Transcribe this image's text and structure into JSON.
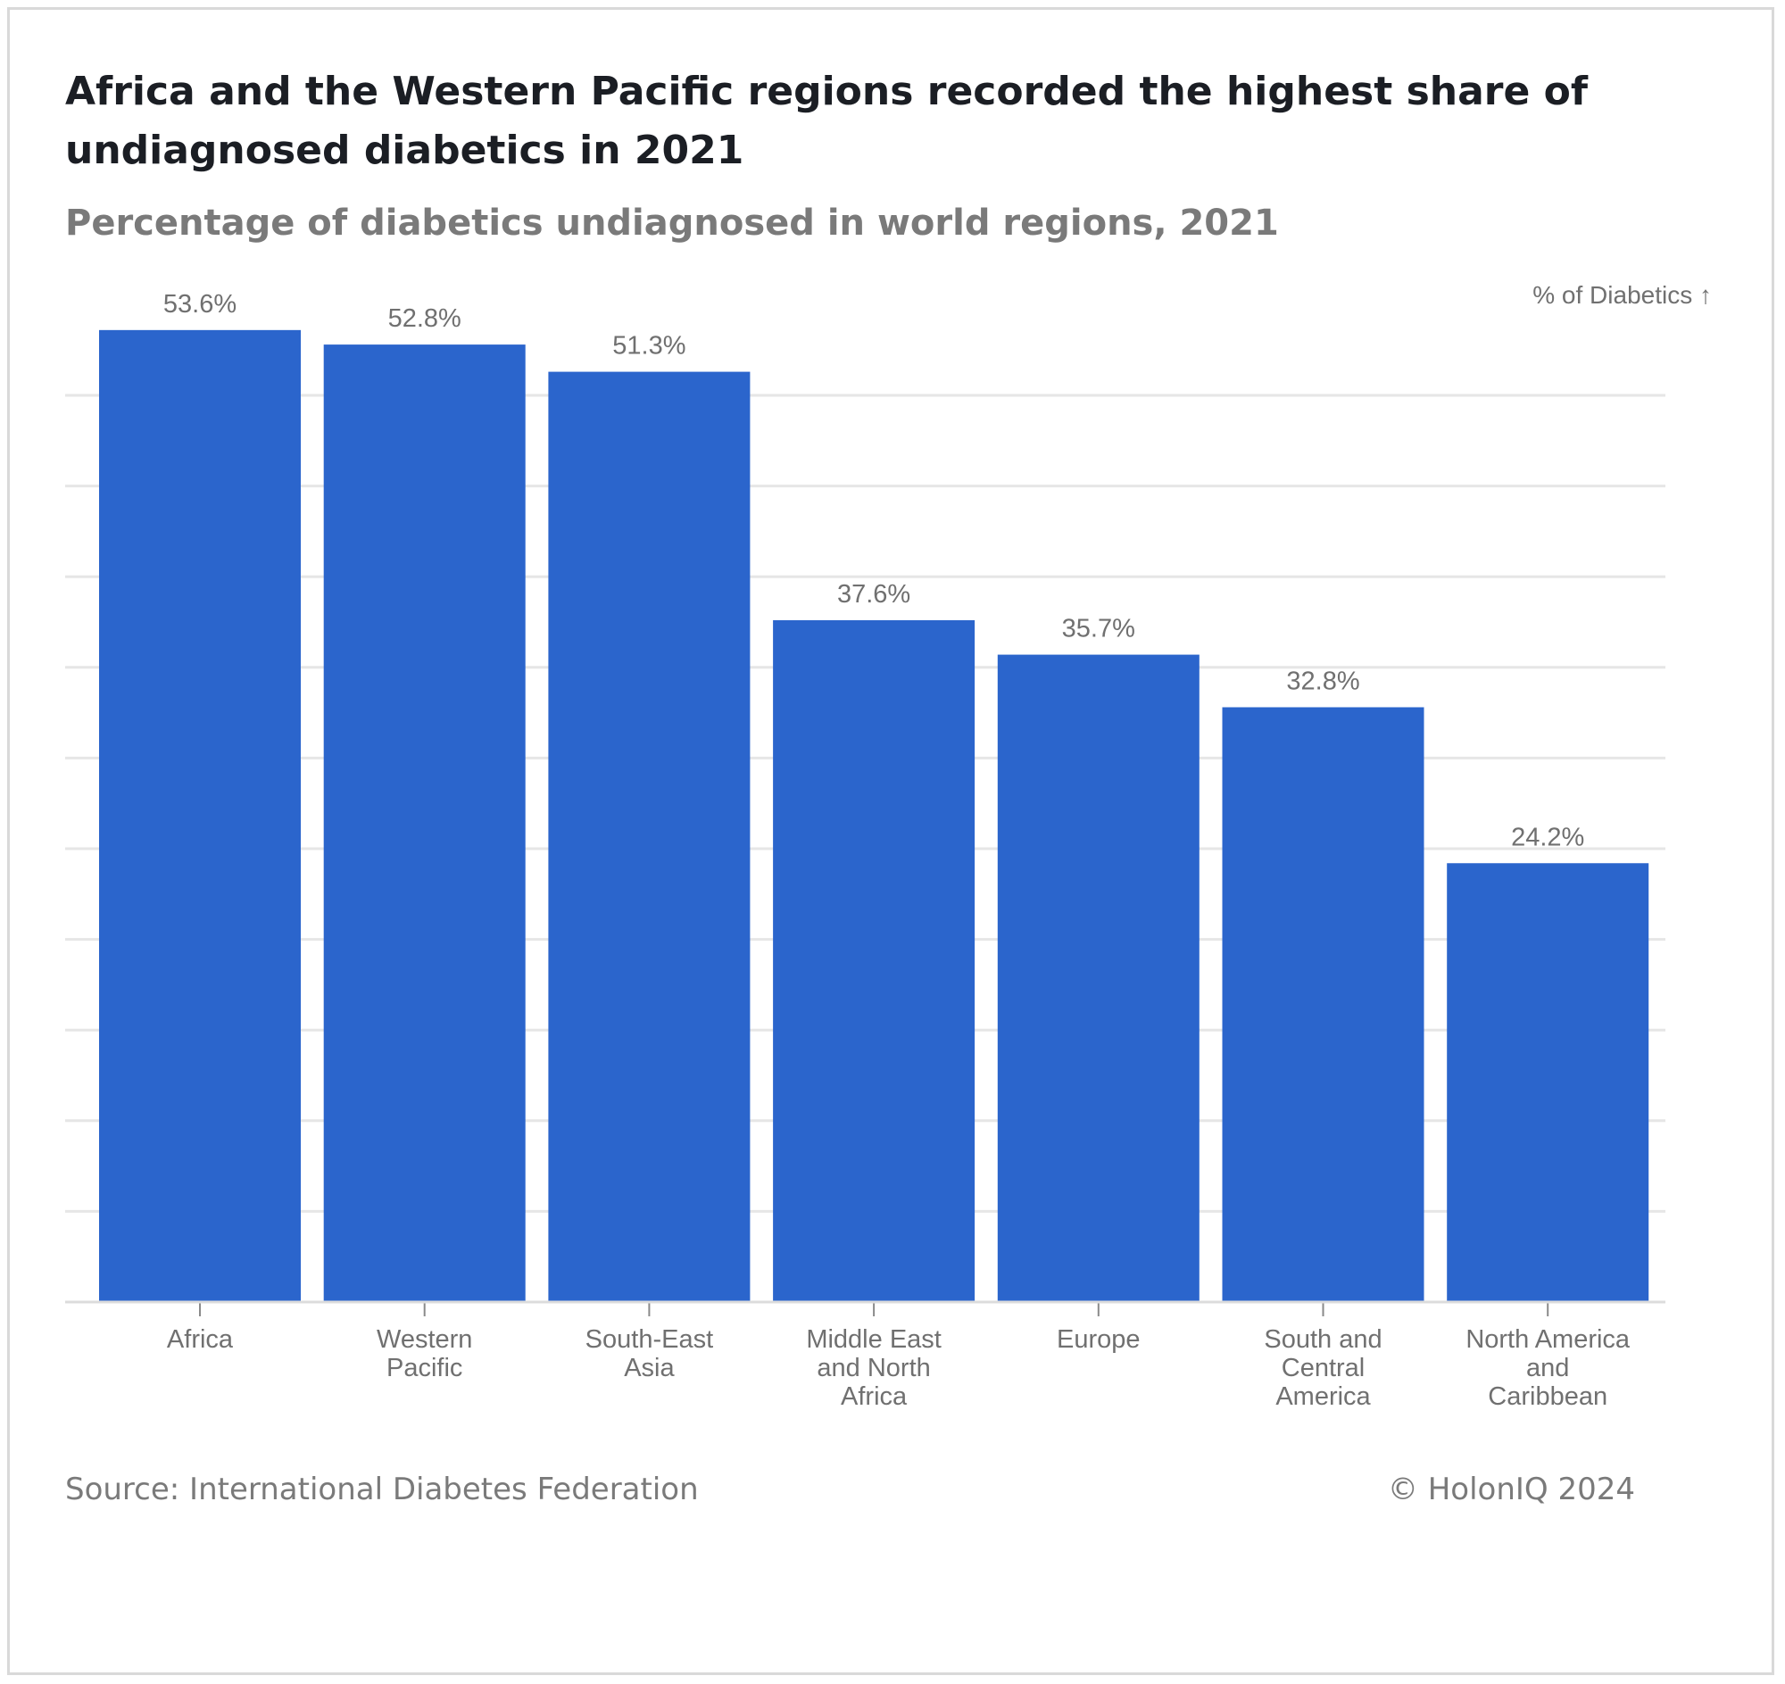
{
  "chart_data": {
    "type": "bar",
    "title": "Africa and the Western Pacific regions recorded the highest share of undiagnosed diabetics in 2021",
    "subtitle": "Percentage of diabetics undiagnosed in world regions, 2021",
    "ylabel": "% of Diabetics ↑",
    "xlabel": "",
    "categories": [
      [
        "Africa"
      ],
      [
        "Western",
        "Pacific"
      ],
      [
        "South-East",
        "Asia"
      ],
      [
        "Middle East",
        "and North",
        "Africa"
      ],
      [
        "Europe"
      ],
      [
        "South and",
        "Central",
        "America"
      ],
      [
        "North America",
        "and",
        "Caribbean"
      ]
    ],
    "values": [
      53.6,
      52.8,
      51.3,
      37.6,
      35.7,
      32.8,
      24.2
    ],
    "value_labels": [
      "53.6%",
      "52.8%",
      "51.3%",
      "37.6%",
      "35.7%",
      "32.8%",
      "24.2%"
    ],
    "ylim": [
      0,
      50
    ],
    "gridline_step": 5,
    "grid": true,
    "bar_color": "#2b65cc",
    "grid_color": "#e6e6e6",
    "label_color": "#707070"
  },
  "source": "Source: International Diabetes Federation",
  "credit": "© HolonIQ 2024"
}
